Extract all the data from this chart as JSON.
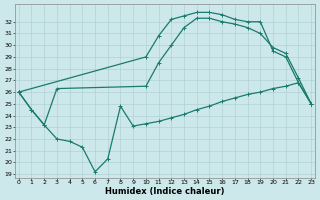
{
  "xlabel": "Humidex (Indice chaleur)",
  "line1_x": [
    0,
    1,
    2,
    3,
    4,
    5,
    6,
    7,
    8,
    9,
    10,
    11,
    12,
    13,
    14,
    15,
    16,
    17,
    18,
    19,
    20,
    21,
    22,
    23
  ],
  "line1_y": [
    26,
    24.5,
    23.2,
    22.0,
    21.8,
    21.3,
    19.2,
    20.3,
    24.8,
    23.1,
    23.3,
    23.5,
    23.8,
    24.1,
    24.5,
    24.8,
    25.2,
    25.5,
    25.8,
    26.0,
    26.3,
    26.5,
    26.8,
    25.0
  ],
  "line2_x": [
    0,
    1,
    2,
    3,
    10,
    11,
    12,
    13,
    14,
    15,
    16,
    17,
    18,
    19,
    20,
    21,
    22,
    23
  ],
  "line2_y": [
    26,
    24.5,
    23.2,
    26.3,
    26.5,
    28.5,
    30.0,
    31.5,
    32.3,
    32.3,
    32.0,
    31.8,
    31.5,
    31.0,
    29.8,
    29.3,
    27.2,
    25.0
  ],
  "line3_x": [
    0,
    10,
    11,
    12,
    13,
    14,
    15,
    16,
    17,
    18,
    19,
    20,
    21,
    22,
    23
  ],
  "line3_y": [
    26,
    29.0,
    30.8,
    32.2,
    32.5,
    32.8,
    32.8,
    32.6,
    32.2,
    32.0,
    32.0,
    29.5,
    29.0,
    26.8,
    25.0
  ],
  "line_color": "#1a7a6e",
  "marker": "+",
  "markersize": 3.5,
  "linewidth": 0.9,
  "bg_color": "#cde8ea",
  "grid_color": "#aacdd0",
  "ylim_min": 19,
  "ylim_max": 33,
  "xlim_min": 0,
  "xlim_max": 23,
  "yticks": [
    19,
    20,
    21,
    22,
    23,
    24,
    25,
    26,
    27,
    28,
    29,
    30,
    31,
    32
  ],
  "xticks": [
    0,
    1,
    2,
    3,
    4,
    5,
    6,
    7,
    8,
    9,
    10,
    11,
    12,
    13,
    14,
    15,
    16,
    17,
    18,
    19,
    20,
    21,
    22,
    23
  ],
  "tick_fontsize": 4.5,
  "xlabel_fontsize": 6.0
}
